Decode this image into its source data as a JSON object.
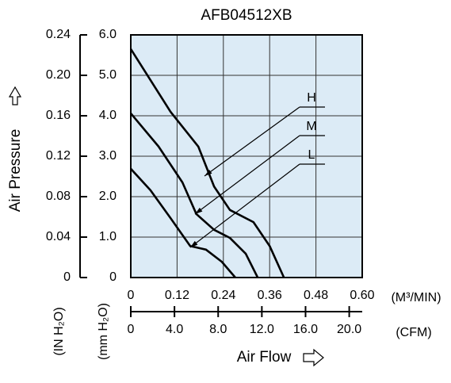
{
  "chart_data": {
    "type": "line",
    "title": "AFB04512XB",
    "ylabel": "Air Pressure",
    "xlabel": "Air Flow",
    "y_unit": "(mm H₂O)",
    "y2_unit": "(IN H₂O)",
    "x_unit": "(M³/MIN)",
    "x2_unit": "(CFM)",
    "xlim": [
      0,
      0.6
    ],
    "xticks": [
      0,
      0.12,
      0.24,
      0.36,
      0.48,
      {
        "value": 0.6,
        "label": "0.60"
      }
    ],
    "x2lim": [
      0,
      21.19
    ],
    "x2ticks": [
      0,
      {
        "value": 4,
        "label": "4.0"
      },
      {
        "value": 8,
        "label": "8.0"
      },
      {
        "value": 12,
        "label": "12.0"
      },
      {
        "value": 16,
        "label": "16.0"
      },
      {
        "value": 20,
        "label": "20.0"
      }
    ],
    "ylim": [
      0,
      6
    ],
    "yticks": [
      0,
      {
        "value": 1,
        "label": "1.0"
      },
      {
        "value": 2,
        "label": "2.0"
      },
      {
        "value": 3,
        "label": "3.0"
      },
      {
        "value": 4,
        "label": "4.0"
      },
      {
        "value": 5,
        "label": "5.0"
      },
      {
        "value": 6,
        "label": "6.0"
      }
    ],
    "y2lim": [
      0,
      0.24
    ],
    "y2ticks": [
      0,
      0.04,
      0.08,
      0.12,
      0.16,
      {
        "value": 0.2,
        "label": "0.20"
      },
      0.24
    ],
    "grid": true,
    "background": "#dcebf6",
    "series": [
      {
        "name": "H",
        "color": "#000000",
        "x": [
          0,
          0.103,
          0.175,
          0.216,
          0.257,
          0.318,
          0.36,
          0.397
        ],
        "values": [
          5.65,
          4.1,
          3.24,
          2.25,
          1.67,
          1.37,
          0.78,
          0
        ]
      },
      {
        "name": "M",
        "color": "#000000",
        "x": [
          0,
          0.072,
          0.134,
          0.17,
          0.216,
          0.257,
          0.298,
          0.329
        ],
        "values": [
          4.06,
          3.24,
          2.35,
          1.57,
          1.18,
          0.98,
          0.59,
          0
        ]
      },
      {
        "name": "L",
        "color": "#000000",
        "x": [
          0,
          0.051,
          0.103,
          0.154,
          0.195,
          0.236,
          0.271
        ],
        "values": [
          2.69,
          2.16,
          1.47,
          0.78,
          0.69,
          0.39,
          0
        ]
      }
    ]
  }
}
